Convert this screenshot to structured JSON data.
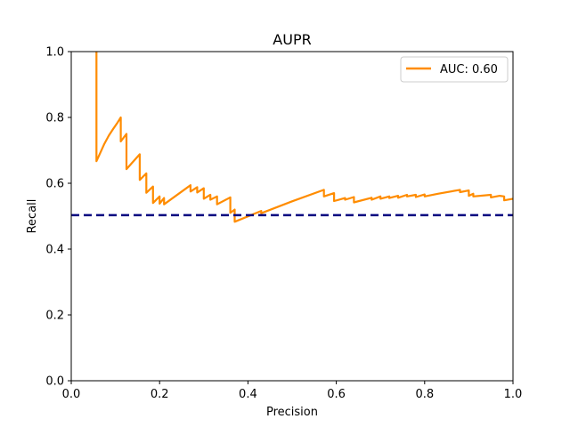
{
  "chart_data": {
    "type": "line",
    "title": "AUPR",
    "xlabel": "Precision",
    "ylabel": "Recall",
    "xlim": [
      0.0,
      1.0
    ],
    "ylim": [
      0.0,
      1.0
    ],
    "xticks": [
      "0.0",
      "0.2",
      "0.4",
      "0.6",
      "0.8",
      "1.0"
    ],
    "yticks": [
      "0.0",
      "0.2",
      "0.4",
      "0.6",
      "0.8",
      "1.0"
    ],
    "grid": false,
    "legend_position": "top-right",
    "series": [
      {
        "name": "AUC: 0.60",
        "color": "#ff8c00",
        "style": "solid",
        "points": [
          [
            0.057,
            1.0
          ],
          [
            0.057,
            0.667
          ],
          [
            0.065,
            0.69
          ],
          [
            0.075,
            0.72
          ],
          [
            0.085,
            0.745
          ],
          [
            0.095,
            0.765
          ],
          [
            0.105,
            0.785
          ],
          [
            0.112,
            0.8
          ],
          [
            0.112,
            0.727
          ],
          [
            0.125,
            0.75
          ],
          [
            0.125,
            0.643
          ],
          [
            0.155,
            0.688
          ],
          [
            0.155,
            0.61
          ],
          [
            0.17,
            0.63
          ],
          [
            0.17,
            0.571
          ],
          [
            0.185,
            0.59
          ],
          [
            0.185,
            0.54
          ],
          [
            0.2,
            0.56
          ],
          [
            0.2,
            0.538
          ],
          [
            0.21,
            0.555
          ],
          [
            0.21,
            0.536
          ],
          [
            0.27,
            0.594
          ],
          [
            0.27,
            0.575
          ],
          [
            0.285,
            0.588
          ],
          [
            0.285,
            0.572
          ],
          [
            0.3,
            0.585
          ],
          [
            0.3,
            0.553
          ],
          [
            0.315,
            0.565
          ],
          [
            0.315,
            0.55
          ],
          [
            0.33,
            0.56
          ],
          [
            0.33,
            0.536
          ],
          [
            0.36,
            0.557
          ],
          [
            0.36,
            0.51
          ],
          [
            0.37,
            0.52
          ],
          [
            0.37,
            0.483
          ],
          [
            0.43,
            0.516
          ],
          [
            0.43,
            0.509
          ],
          [
            0.5,
            0.545
          ],
          [
            0.572,
            0.58
          ],
          [
            0.572,
            0.56
          ],
          [
            0.595,
            0.57
          ],
          [
            0.595,
            0.546
          ],
          [
            0.62,
            0.555
          ],
          [
            0.62,
            0.55
          ],
          [
            0.64,
            0.558
          ],
          [
            0.64,
            0.542
          ],
          [
            0.68,
            0.556
          ],
          [
            0.68,
            0.55
          ],
          [
            0.7,
            0.56
          ],
          [
            0.7,
            0.553
          ],
          [
            0.72,
            0.56
          ],
          [
            0.72,
            0.555
          ],
          [
            0.74,
            0.562
          ],
          [
            0.74,
            0.556
          ],
          [
            0.76,
            0.565
          ],
          [
            0.76,
            0.56
          ],
          [
            0.78,
            0.565
          ],
          [
            0.78,
            0.558
          ],
          [
            0.8,
            0.566
          ],
          [
            0.8,
            0.56
          ],
          [
            0.83,
            0.568
          ],
          [
            0.88,
            0.58
          ],
          [
            0.88,
            0.573
          ],
          [
            0.9,
            0.578
          ],
          [
            0.9,
            0.562
          ],
          [
            0.91,
            0.568
          ],
          [
            0.91,
            0.56
          ],
          [
            0.95,
            0.565
          ],
          [
            0.95,
            0.557
          ],
          [
            0.97,
            0.562
          ],
          [
            0.98,
            0.56
          ],
          [
            0.98,
            0.548
          ],
          [
            1.0,
            0.553
          ]
        ]
      },
      {
        "name": "",
        "color": "#000080",
        "style": "dashed",
        "points": [
          [
            0.0,
            0.503
          ],
          [
            1.0,
            0.503
          ]
        ]
      }
    ]
  }
}
